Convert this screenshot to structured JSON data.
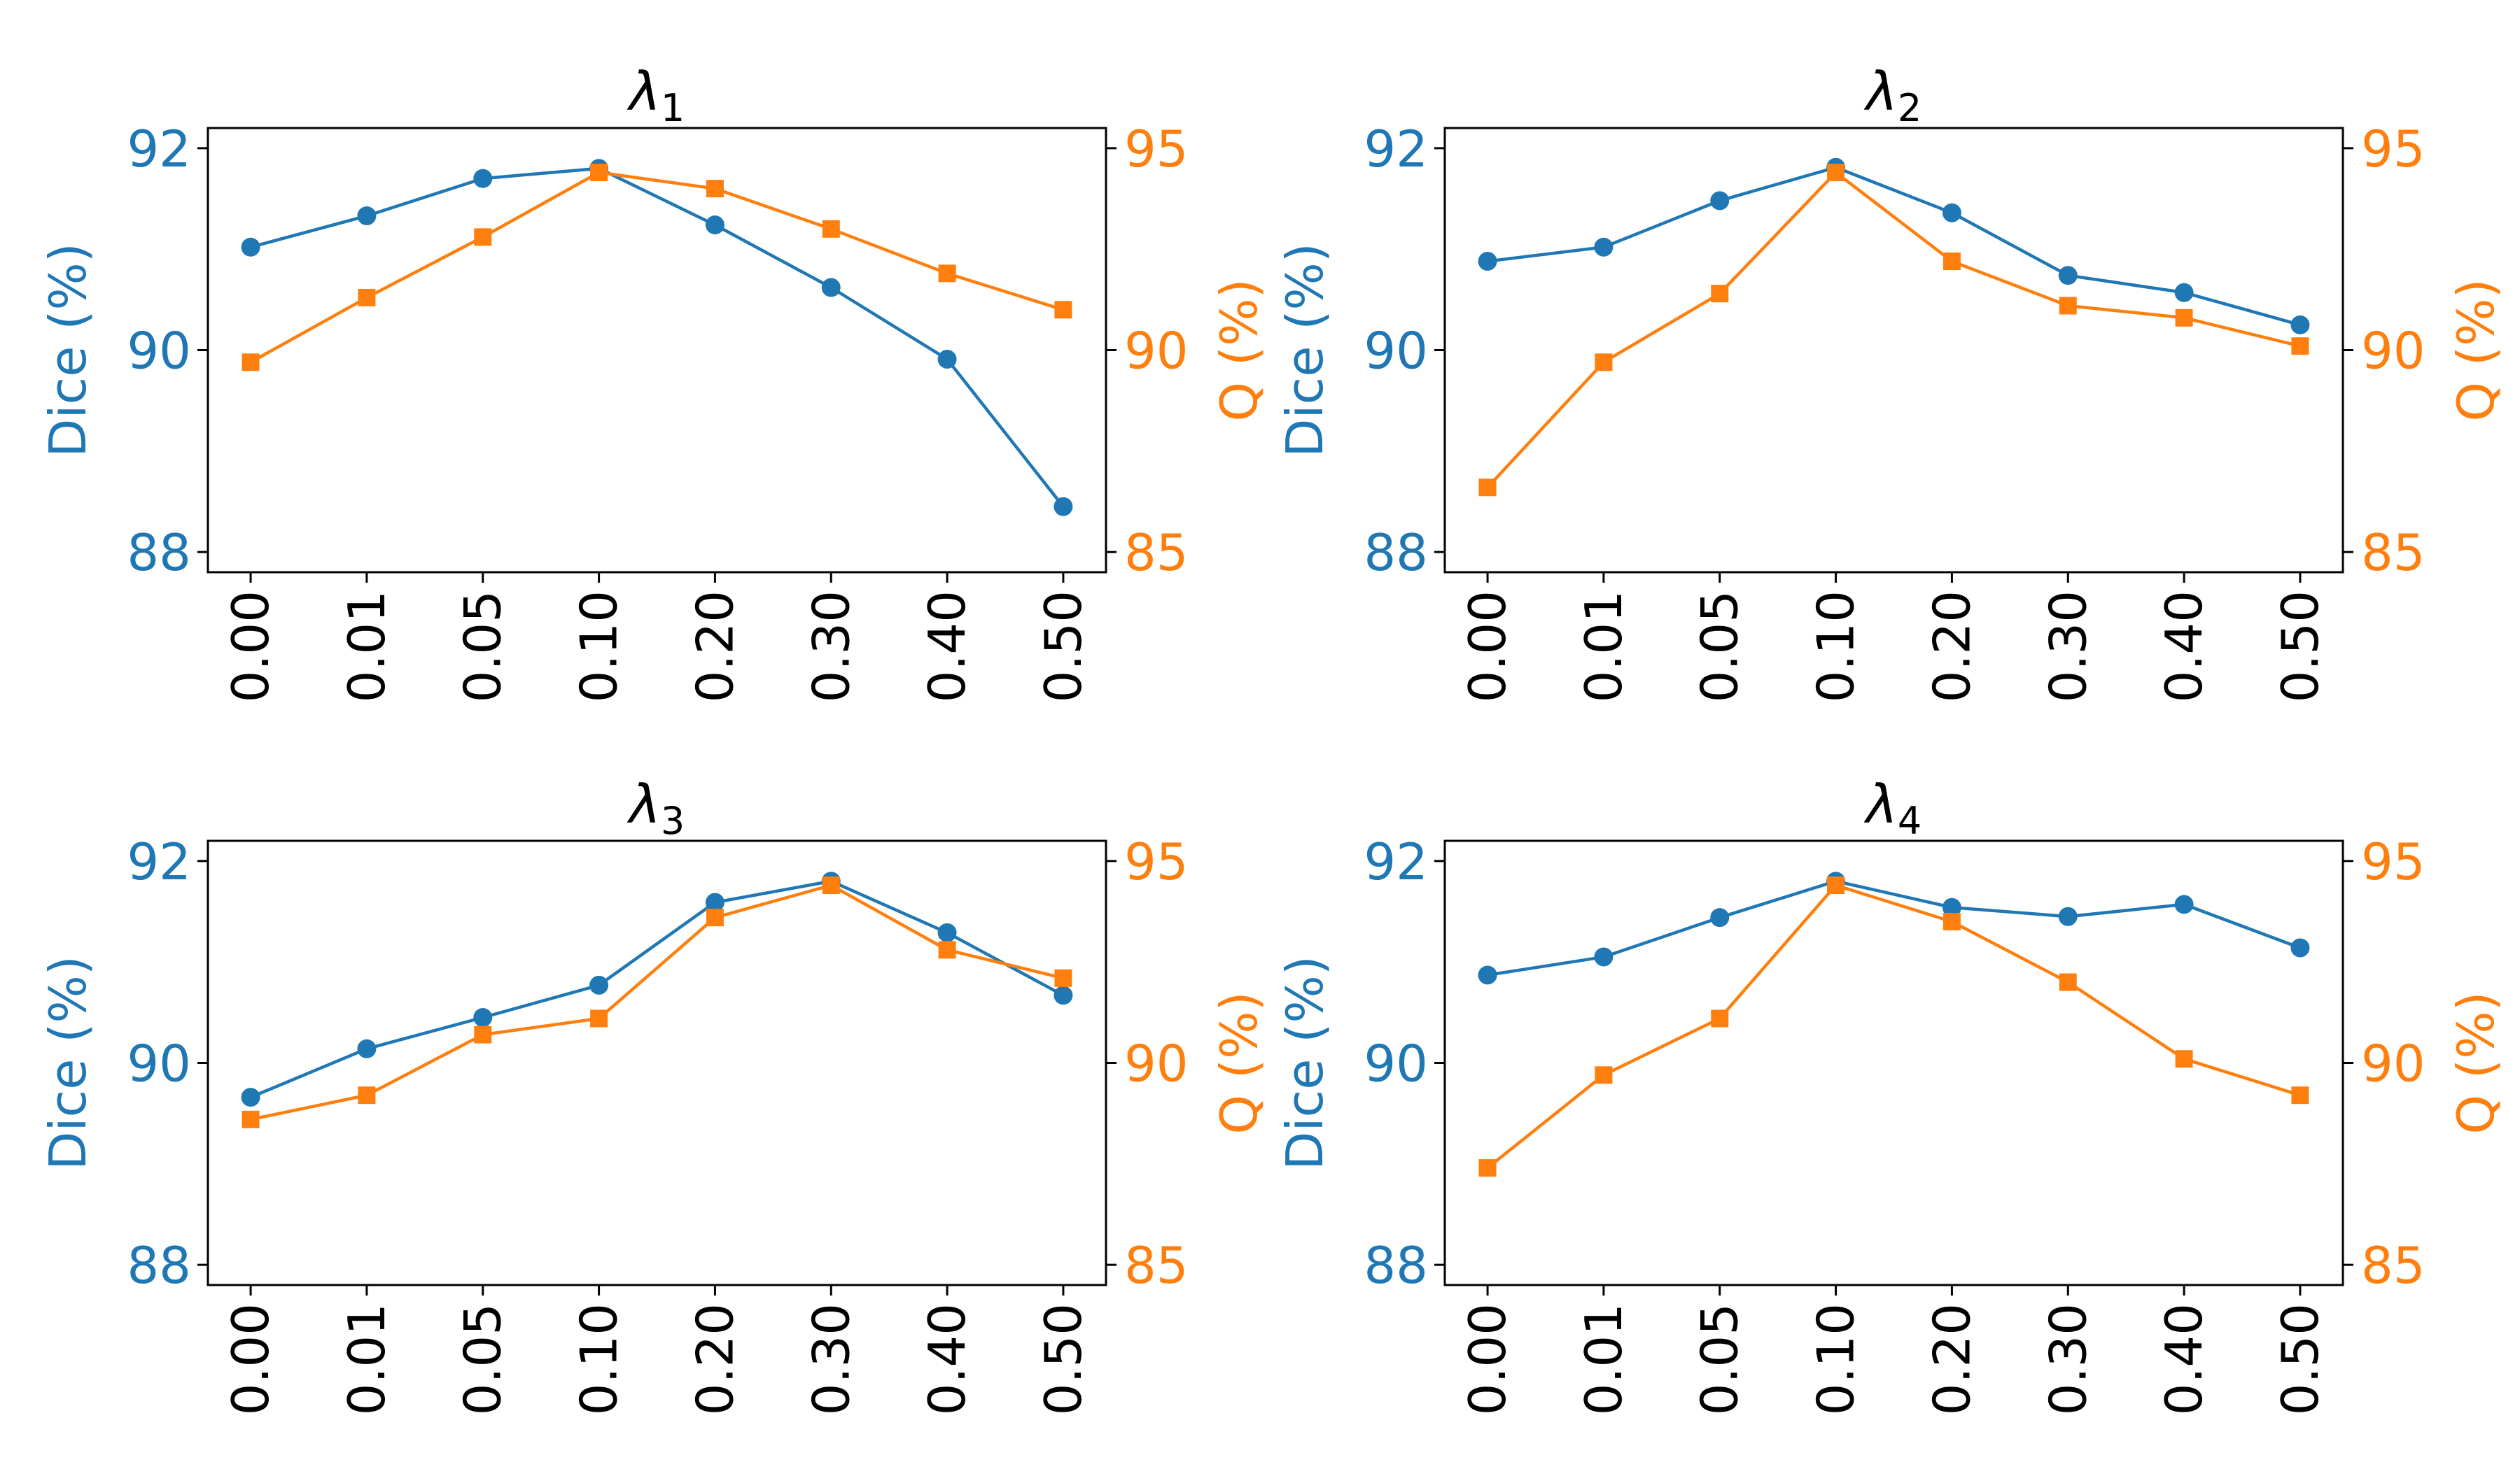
{
  "chart_data": [
    {
      "type": "line",
      "title_var": "λ",
      "title_sub": "1",
      "categories": [
        "0.00",
        "0.01",
        "0.05",
        "0.10",
        "0.20",
        "0.30",
        "0.40",
        "0.50"
      ],
      "ylabel_left": "Dice (%)",
      "ylabel_right": "Q (%)",
      "ylim_left": [
        87.8,
        92.2
      ],
      "yticks_left": [
        "88",
        "90",
        "92"
      ],
      "ylim_right": [
        84.5,
        95.5
      ],
      "yticks_right": [
        "85",
        "90",
        "95"
      ],
      "series": [
        {
          "name": "Dice",
          "axis": "left",
          "marker": "circle",
          "values": [
            91.02,
            91.33,
            91.7,
            91.8,
            91.24,
            90.62,
            89.91,
            88.45
          ]
        },
        {
          "name": "Q",
          "axis": "right",
          "marker": "square",
          "values": [
            89.7,
            91.3,
            92.8,
            94.4,
            94.0,
            93.0,
            91.9,
            91.0
          ]
        }
      ]
    },
    {
      "type": "line",
      "title_var": "λ",
      "title_sub": "2",
      "categories": [
        "0.00",
        "0.01",
        "0.05",
        "0.10",
        "0.20",
        "0.30",
        "0.40",
        "0.50"
      ],
      "ylabel_left": "Dice (%)",
      "ylabel_right": "Q (%)",
      "ylim_left": [
        87.8,
        92.2
      ],
      "yticks_left": [
        "88",
        "90",
        "92"
      ],
      "ylim_right": [
        84.5,
        95.5
      ],
      "yticks_right": [
        "85",
        "90",
        "95"
      ],
      "series": [
        {
          "name": "Dice",
          "axis": "left",
          "marker": "circle",
          "values": [
            90.88,
            91.02,
            91.48,
            91.81,
            91.36,
            90.74,
            90.57,
            90.25
          ]
        },
        {
          "name": "Q",
          "axis": "right",
          "marker": "square",
          "values": [
            86.6,
            89.7,
            91.4,
            94.4,
            92.2,
            91.1,
            90.8,
            90.1
          ]
        }
      ]
    },
    {
      "type": "line",
      "title_var": "λ",
      "title_sub": "3",
      "categories": [
        "0.00",
        "0.01",
        "0.05",
        "0.10",
        "0.20",
        "0.30",
        "0.40",
        "0.50"
      ],
      "ylabel_left": "Dice (%)",
      "ylabel_right": "Q (%)",
      "ylim_left": [
        87.8,
        92.2
      ],
      "yticks_left": [
        "88",
        "90",
        "92"
      ],
      "ylim_right": [
        84.5,
        95.5
      ],
      "yticks_right": [
        "85",
        "90",
        "95"
      ],
      "series": [
        {
          "name": "Dice",
          "axis": "left",
          "marker": "circle",
          "values": [
            89.66,
            90.14,
            90.45,
            90.77,
            91.59,
            91.8,
            91.29,
            90.67
          ]
        },
        {
          "name": "Q",
          "axis": "right",
          "marker": "square",
          "values": [
            88.6,
            89.2,
            90.7,
            91.1,
            93.6,
            94.4,
            92.8,
            92.1
          ]
        }
      ]
    },
    {
      "type": "line",
      "title_var": "λ",
      "title_sub": "4",
      "categories": [
        "0.00",
        "0.01",
        "0.05",
        "0.10",
        "0.20",
        "0.30",
        "0.40",
        "0.50"
      ],
      "ylabel_left": "Dice (%)",
      "ylabel_right": "Q (%)",
      "ylim_left": [
        87.8,
        92.2
      ],
      "yticks_left": [
        "88",
        "90",
        "92"
      ],
      "ylim_right": [
        84.5,
        95.5
      ],
      "yticks_right": [
        "85",
        "90",
        "95"
      ],
      "series": [
        {
          "name": "Dice",
          "axis": "left",
          "marker": "circle",
          "values": [
            90.87,
            91.05,
            91.44,
            91.8,
            91.54,
            91.45,
            91.57,
            91.14
          ]
        },
        {
          "name": "Q",
          "axis": "right",
          "marker": "square",
          "values": [
            87.4,
            89.7,
            91.1,
            94.4,
            93.5,
            92.0,
            90.1,
            89.2
          ]
        }
      ]
    }
  ],
  "colors": {
    "dice": "#1f77b4",
    "q": "#ff7f0e",
    "axis": "#000000"
  }
}
